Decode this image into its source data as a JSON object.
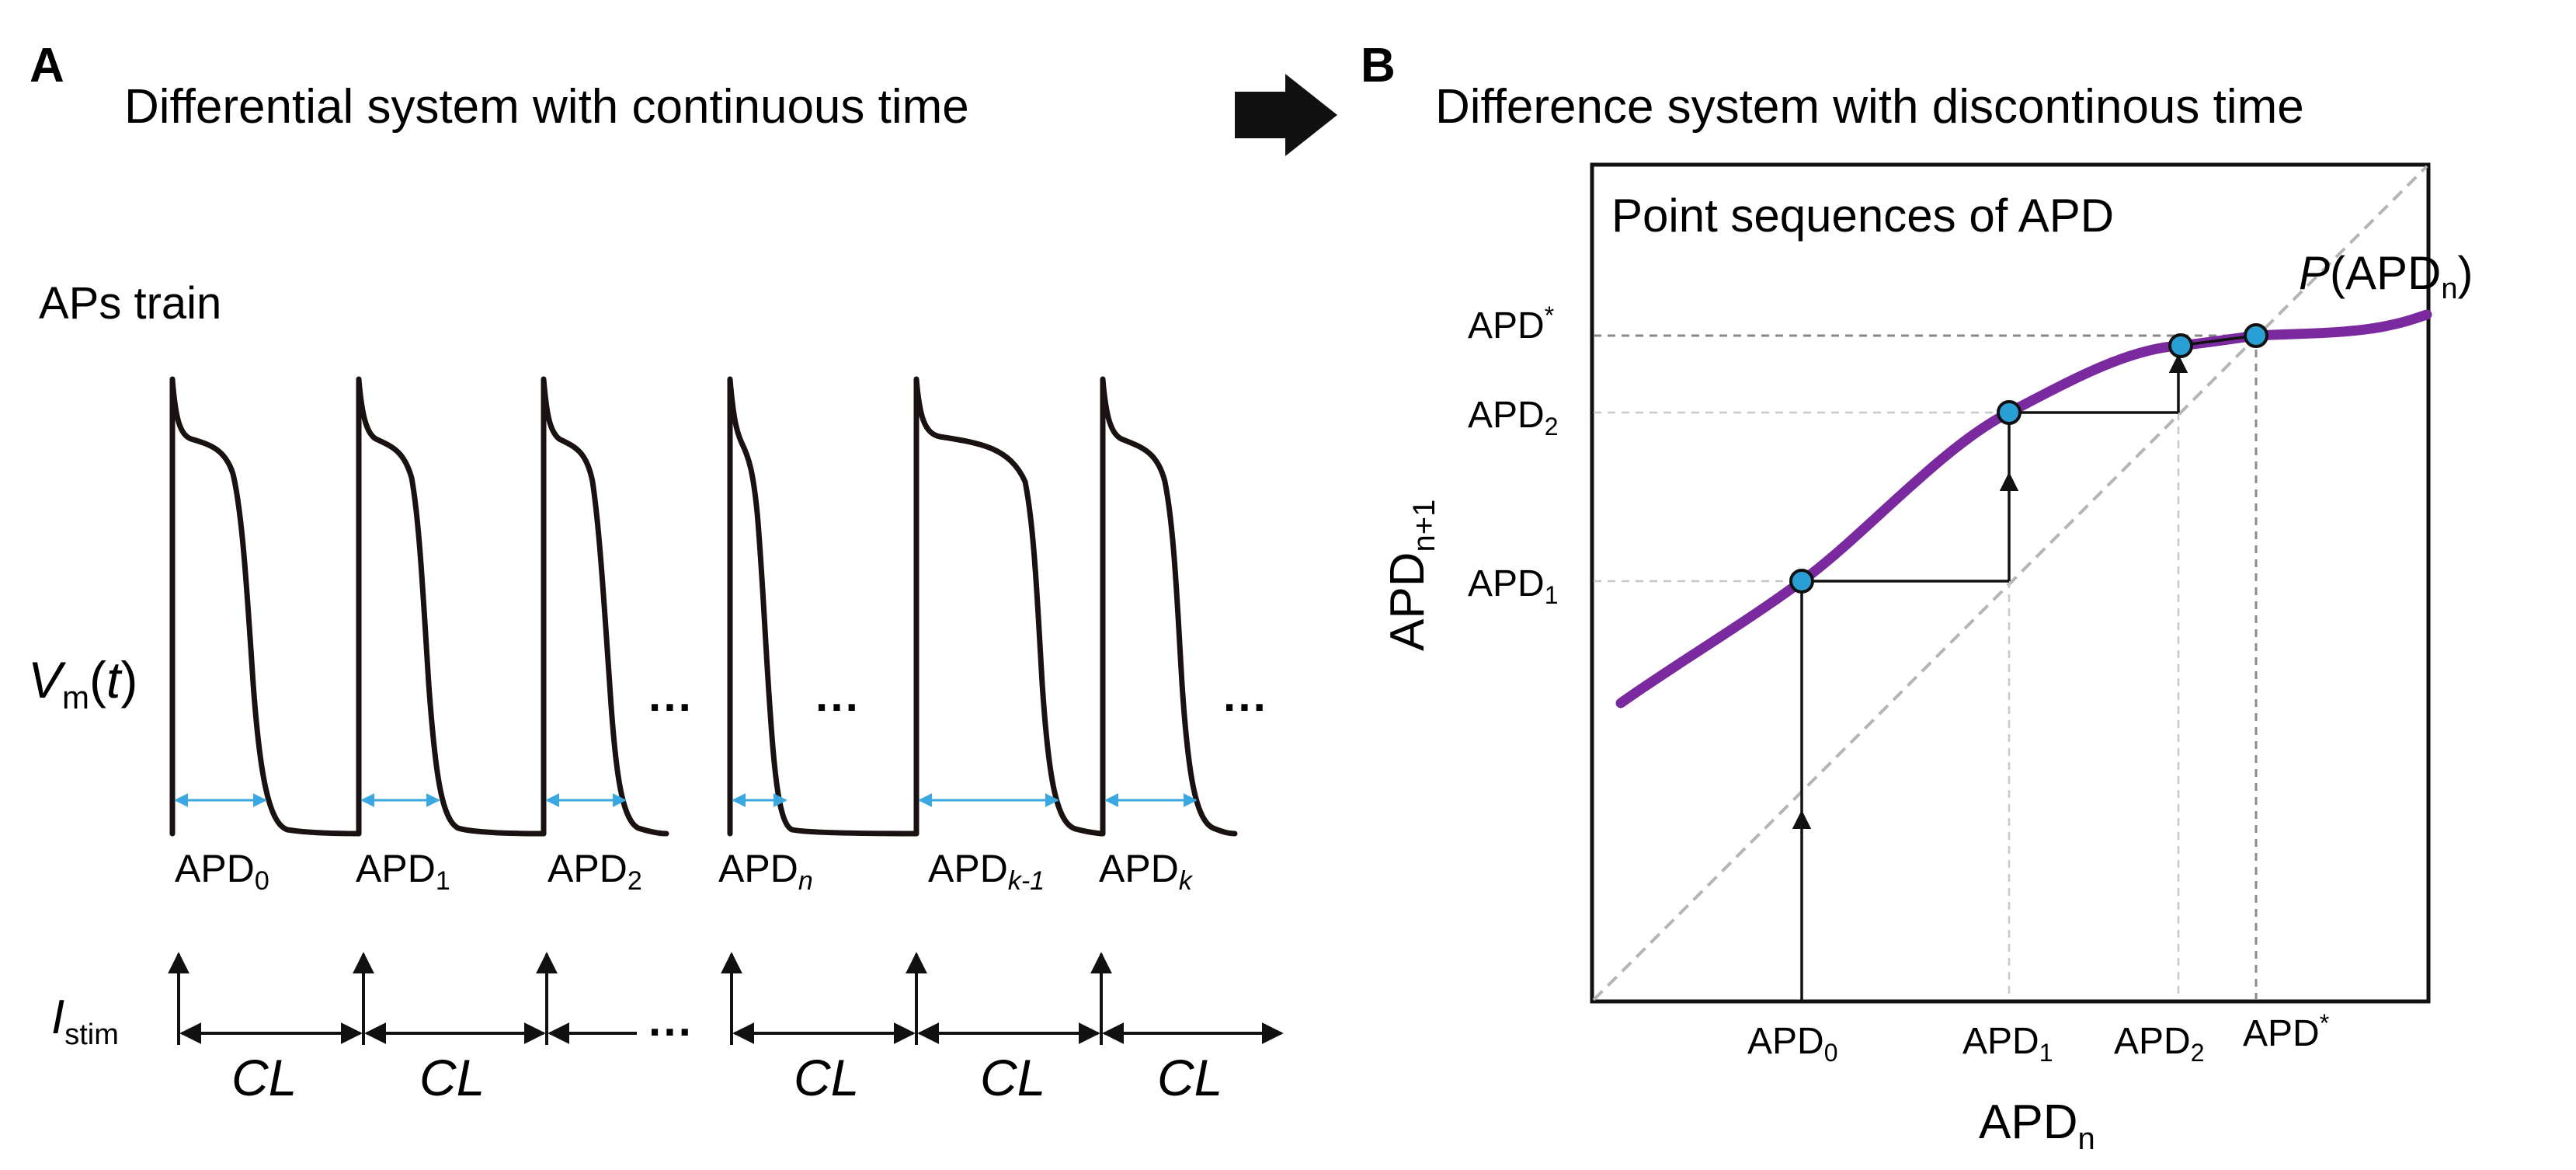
{
  "panel_a": {
    "letter": "A",
    "title": "Differential system with continuous time",
    "train_label": "APs train",
    "vm_symbol": "V",
    "vm_sub": "m",
    "vm_arg": "t",
    "ellipsis": "···",
    "apd_labels": [
      {
        "base": "APD",
        "sub": "0",
        "sub_italic": false
      },
      {
        "base": "APD",
        "sub": "1",
        "sub_italic": false
      },
      {
        "base": "APD",
        "sub": "2",
        "sub_italic": false
      },
      {
        "base": "APD",
        "sub": "n",
        "sub_italic": true
      },
      {
        "base": "APD",
        "sub": "k-1",
        "sub_italic": true
      },
      {
        "base": "APD",
        "sub": "k",
        "sub_italic": true
      }
    ],
    "istim_symbol": "I",
    "istim_sub": "stim",
    "cl_label": "CL"
  },
  "panel_b": {
    "letter": "B",
    "title": "Difference system with discontinous time",
    "box_title": "Point sequences of APD",
    "curve_label_fn": "P",
    "curve_label_arg_base": "APD",
    "curve_label_arg_sub": "n",
    "y_axis_base": "APD",
    "y_axis_sub": "n+1",
    "x_axis_base": "APD",
    "x_axis_sub": "n",
    "y_ticks": [
      {
        "base": "APD",
        "sub": "*",
        "sup": true
      },
      {
        "base": "APD",
        "sub": "2",
        "sup": false
      },
      {
        "base": "APD",
        "sub": "1",
        "sup": false
      }
    ],
    "x_ticks": [
      {
        "base": "APD",
        "sub": "0",
        "sup": false
      },
      {
        "base": "APD",
        "sub": "1",
        "sup": false
      },
      {
        "base": "APD",
        "sub": "2",
        "sup": false
      },
      {
        "base": "APD",
        "sub": "*",
        "sup": true
      }
    ],
    "colors": {
      "curve": "#7a2a9e",
      "point": "#2a9fd6",
      "apd_arrow": "#3aa7e0",
      "diag": "#b5b5b5"
    }
  },
  "transition_arrow": "right-block-arrow"
}
